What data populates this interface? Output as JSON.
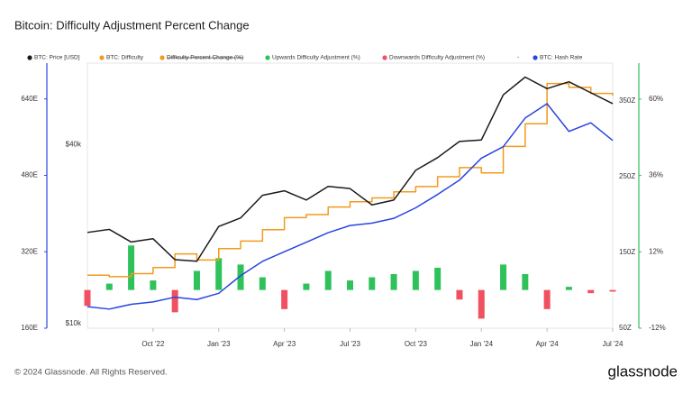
{
  "chart_data": {
    "type": "line",
    "title": "Bitcoin: Difficulty Adjustment Percent Change",
    "x": [
      "2022-07",
      "2022-08",
      "2022-09",
      "2022-10",
      "2022-11",
      "2022-12",
      "2023-01",
      "2023-02",
      "2023-03",
      "2023-04",
      "2023-05",
      "2023-06",
      "2023-07",
      "2023-08",
      "2023-09",
      "2023-10",
      "2023-11",
      "2023-12",
      "2024-01",
      "2024-02",
      "2024-03",
      "2024-04",
      "2024-05",
      "2024-06",
      "2024-07"
    ],
    "xlim": [
      "2022-07",
      "2024-07"
    ],
    "xticks": [
      {
        "value": "2022-10",
        "label": "Oct '22"
      },
      {
        "value": "2023-01",
        "label": "Jan '23"
      },
      {
        "value": "2023-04",
        "label": "Apr '23"
      },
      {
        "value": "2023-07",
        "label": "Jul '23"
      },
      {
        "value": "2023-10",
        "label": "Oct '23"
      },
      {
        "value": "2024-01",
        "label": "Jan '24"
      },
      {
        "value": "2024-04",
        "label": "Apr '24"
      },
      {
        "value": "2024-07",
        "label": "Jul '24"
      }
    ],
    "axes": {
      "hash": {
        "ylim": [
          160,
          715
        ],
        "color": "#2a45e0",
        "yticks": [
          {
            "value": 160,
            "label": "160E"
          },
          {
            "value": 320,
            "label": "320E"
          },
          {
            "value": 480,
            "label": "480E"
          },
          {
            "value": 640,
            "label": "640E"
          }
        ]
      },
      "price": {
        "ylim": [
          10000,
          78000
        ],
        "log": true,
        "yticks": [
          {
            "value": 10000,
            "label": "$10k"
          },
          {
            "value": 40000,
            "label": "$40k"
          }
        ]
      },
      "difficulty": {
        "ylim": [
          50,
          400
        ],
        "yticks": [
          {
            "value": 50,
            "label": "50Z"
          },
          {
            "value": 150,
            "label": "150Z"
          },
          {
            "value": 250,
            "label": "250Z"
          },
          {
            "value": 350,
            "label": "350Z"
          }
        ]
      },
      "pct": {
        "ylim": [
          -12,
          71.3
        ],
        "color": "#2fc25b",
        "yticks": [
          {
            "value": -12,
            "label": "-12%"
          },
          {
            "value": 12,
            "label": "12%"
          },
          {
            "value": 36,
            "label": "36%"
          },
          {
            "value": 60,
            "label": "60%"
          }
        ]
      }
    },
    "series": [
      {
        "name": "BTC: Price [USD]",
        "color": "#1a1a1a",
        "kind": "line",
        "axis": "price",
        "values": [
          21000,
          21500,
          19500,
          20000,
          17000,
          16800,
          22000,
          23500,
          28000,
          29000,
          27000,
          30000,
          29500,
          26000,
          27000,
          34000,
          37500,
          42500,
          43000,
          61000,
          70000,
          64000,
          67500,
          62000,
          57000
        ]
      },
      {
        "name": "BTC: Difficulty",
        "color": "#f39a1e",
        "kind": "step",
        "axis": "difficulty",
        "values": [
          120,
          118,
          122,
          130,
          148,
          140,
          155,
          165,
          180,
          196,
          200,
          210,
          217,
          222,
          230,
          237,
          250,
          262,
          255,
          290,
          320,
          373,
          368,
          360,
          357
        ]
      },
      {
        "name": "Difficulty Percent Change (%)",
        "color": "#f39a1e",
        "hidden": true
      },
      {
        "name": "Upwards Difficulty Adjustment (%)",
        "color": "#2fc25b",
        "kind": "bar",
        "axis": "pct",
        "values": [
          null,
          2,
          14,
          3,
          null,
          6,
          10,
          8,
          4,
          null,
          2,
          6,
          3,
          4,
          5,
          6,
          7,
          null,
          null,
          8,
          5,
          null,
          1,
          null,
          null
        ]
      },
      {
        "name": "Downwards Difficulty Adjustment (%)",
        "color": "#f05060",
        "kind": "bar",
        "axis": "pct",
        "values": [
          -5,
          null,
          null,
          null,
          -7,
          null,
          null,
          null,
          null,
          -6,
          null,
          null,
          null,
          null,
          null,
          null,
          null,
          -3,
          -9,
          null,
          null,
          -6,
          null,
          -1,
          -0.5
        ]
      },
      {
        "name": "-"
      },
      {
        "name": "BTC: Hash Rate",
        "color": "#2a45e0",
        "kind": "line",
        "axis": "hash",
        "values": [
          205,
          200,
          210,
          215,
          225,
          220,
          233,
          270,
          300,
          320,
          340,
          360,
          375,
          380,
          390,
          412,
          440,
          470,
          516,
          540,
          600,
          630,
          572,
          590,
          553
        ]
      }
    ]
  },
  "footer": {
    "copyright": "© 2024 Glassnode. All Rights Reserved.",
    "brand": "glassnode"
  }
}
